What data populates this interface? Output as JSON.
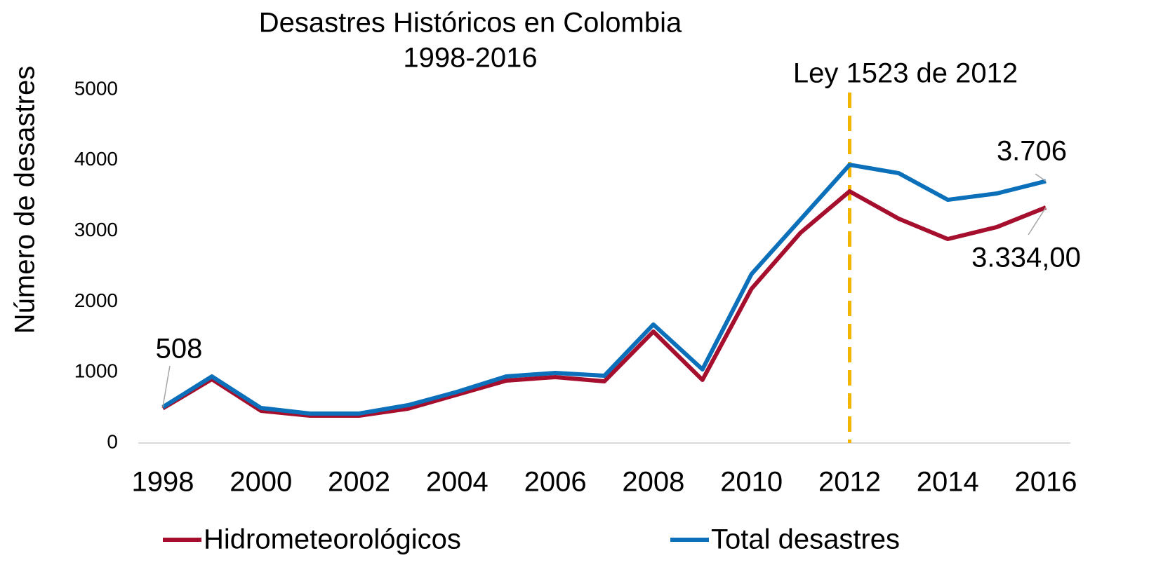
{
  "chart_data": {
    "type": "line",
    "title": "Desastres Históricos en Colombia",
    "subtitle": "1998-2016",
    "y_label": "Número de desastres",
    "x": [
      1998,
      1999,
      2000,
      2001,
      2002,
      2003,
      2004,
      2005,
      2006,
      2007,
      2008,
      2009,
      2010,
      2011,
      2012,
      2013,
      2014,
      2015,
      2016
    ],
    "series": [
      {
        "name": "Hidrometeorológicos",
        "color": "#a50f2d",
        "values": [
          490,
          903,
          456,
          387,
          387,
          486,
          685,
          883,
          933,
          873,
          1577,
          893,
          2183,
          2976,
          3562,
          3175,
          2887,
          3056,
          3334
        ],
        "value_labels": [
          null,
          null,
          null,
          null,
          null,
          null,
          null,
          null,
          null,
          null,
          null,
          null,
          null,
          null,
          null,
          null,
          null,
          null,
          "3.334,00"
        ]
      },
      {
        "name": "Total desastres",
        "color": "#0b6fba",
        "values": [
          508,
          942,
          496,
          417,
          417,
          536,
          724,
          942,
          992,
          952,
          1677,
          1042,
          2391,
          3165,
          3938,
          3819,
          3442,
          3532,
          3706
        ],
        "value_labels": [
          "508",
          null,
          null,
          null,
          null,
          null,
          null,
          null,
          null,
          null,
          null,
          null,
          null,
          null,
          null,
          null,
          null,
          null,
          "3.706"
        ]
      }
    ],
    "xlim": [
      1997.5,
      2016.5
    ],
    "xticks": [
      1998,
      2000,
      2002,
      2004,
      2006,
      2008,
      2010,
      2012,
      2014,
      2016
    ],
    "ylim": [
      0,
      5000
    ],
    "yticks": [
      0,
      1000,
      2000,
      3000,
      4000,
      5000
    ],
    "grid": false,
    "legend": "bottom",
    "annotations": [
      {
        "text": "Ley 1523 de 2012",
        "x": 2012,
        "color": "#f2b600"
      }
    ]
  }
}
